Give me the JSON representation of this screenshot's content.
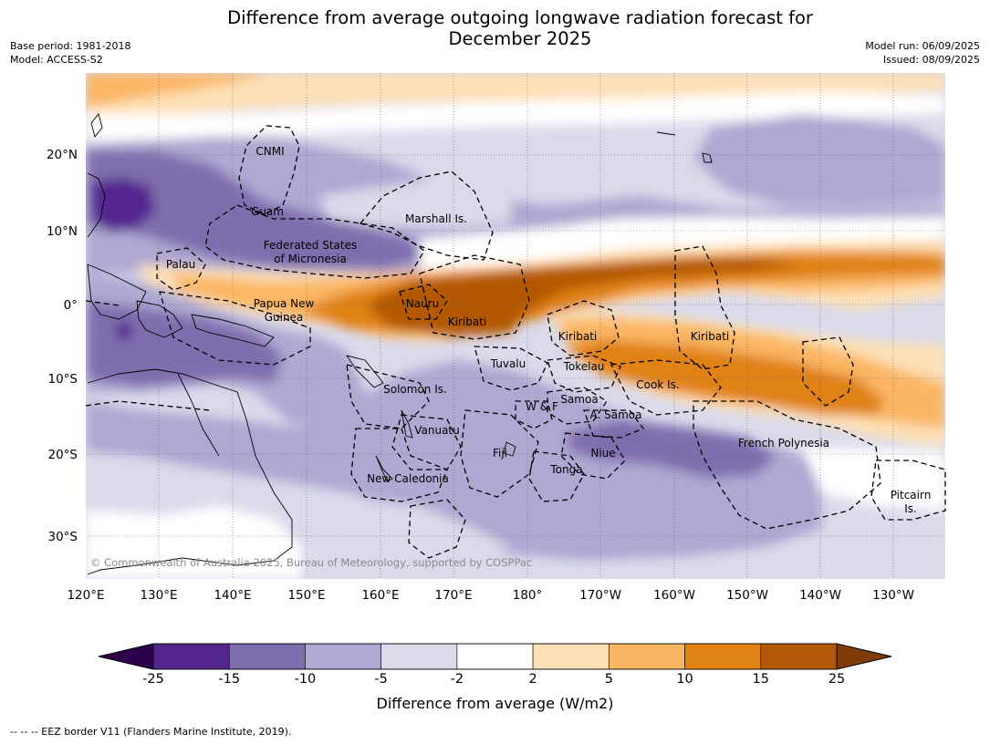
{
  "title_line1": "Difference from average outgoing longwave radiation forecast for",
  "title_line2": "December 2025",
  "meta_left": [
    "Base period: 1981-2018",
    "Model: ACCESS-S2"
  ],
  "meta_right": [
    "Model run: 06/09/2025",
    "Issued: 08/09/2025"
  ],
  "copyright": "© Commonwealth of Australia 2025, Bureau of Meteorology, supported by COSPPac",
  "lon_ticks": [
    "120°E",
    "130°E",
    "140°E",
    "150°E",
    "160°E",
    "170°E",
    "180°",
    "170°W",
    "160°W",
    "150°W",
    "140°W",
    "130°W"
  ],
  "lat_ticks": [
    "20°N",
    "10°N",
    "0°",
    "10°S",
    "20°S",
    "30°S"
  ],
  "eez_labels": [
    {
      "id": "cnmi",
      "text": [
        "CNMI"
      ]
    },
    {
      "id": "guam",
      "text": [
        "Guam"
      ]
    },
    {
      "id": "marshall",
      "text": [
        "Marshall Is."
      ]
    },
    {
      "id": "fsm",
      "text": [
        "Federated States",
        "of Micronesia"
      ]
    },
    {
      "id": "palau",
      "text": [
        "Palau"
      ]
    },
    {
      "id": "png",
      "text": [
        "Papua New",
        "Guinea"
      ]
    },
    {
      "id": "nauru",
      "text": [
        "Nauru"
      ]
    },
    {
      "id": "kiribati1",
      "text": [
        "Kiribati"
      ]
    },
    {
      "id": "kiribati2",
      "text": [
        "Kiribati"
      ]
    },
    {
      "id": "kiribati3",
      "text": [
        "Kiribati"
      ]
    },
    {
      "id": "tuvalu",
      "text": [
        "Tuvalu"
      ]
    },
    {
      "id": "tokelau",
      "text": [
        "Tokelau"
      ]
    },
    {
      "id": "cook",
      "text": [
        "Cook Is."
      ]
    },
    {
      "id": "solomon",
      "text": [
        "Solomon Is."
      ]
    },
    {
      "id": "samoa",
      "text": [
        "Samoa"
      ]
    },
    {
      "id": "wf",
      "text": [
        "W & F"
      ]
    },
    {
      "id": "asamoa",
      "text": [
        "A. Samoa"
      ]
    },
    {
      "id": "vanuatu",
      "text": [
        "Vanuatu"
      ]
    },
    {
      "id": "fiji",
      "text": [
        "Fiji"
      ]
    },
    {
      "id": "niue",
      "text": [
        "Niue"
      ]
    },
    {
      "id": "frpoly",
      "text": [
        "French Polynesia"
      ]
    },
    {
      "id": "tonga",
      "text": [
        "Tonga"
      ]
    },
    {
      "id": "newcal",
      "text": [
        "New Caledonia"
      ]
    },
    {
      "id": "pitcairn",
      "text": [
        "Pitcairn",
        "Is."
      ]
    }
  ],
  "colorbar": {
    "ticks": [
      "-25",
      "-15",
      "-10",
      "-5",
      "-2",
      "2",
      "5",
      "10",
      "15",
      "25"
    ],
    "colors": [
      "#54278f",
      "#7f6eae",
      "#aea8d2",
      "#dadaeb",
      "#ffffff",
      "#fde0b6",
      "#fbb663",
      "#e08214",
      "#b35806"
    ],
    "under_color": "#2d004b",
    "over_color": "#7f3b08",
    "label": "Difference from average (W/m2)"
  },
  "footnote": "--  --  -- EEZ border V11 (Flanders Marine Institute, 2019)."
}
